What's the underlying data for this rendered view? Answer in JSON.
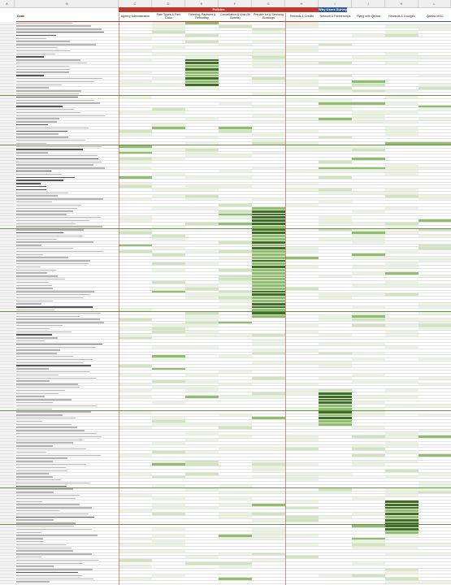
{
  "sheet": {
    "header_cell": "Code",
    "col_letters": [
      "A",
      "B",
      "C",
      "D",
      "E",
      "F",
      "G",
      "H",
      "I",
      "J",
      "K",
      "L",
      "M"
    ],
    "groups": [
      {
        "label": "Policies",
        "color": "#c0392b",
        "from": 2,
        "to": 7
      },
      {
        "label": "Why Users Survey",
        "color": "#2e5c9a",
        "from": 8,
        "to": 12
      }
    ],
    "columns": [
      "Agency Administration",
      "Fare Types & Fare Calcs",
      "Ticketing, Payment & Refunding",
      "Cancellation & Void (BI Boards)",
      "Prepare for & Servicing Bookings",
      "Refunds & Credits",
      "Network & Partnerships",
      "Flying with Qantas",
      "Rewards & Lounges",
      "Qantas MSC"
    ],
    "colors": {
      "dark": "#3f6f22",
      "mid": "#8fbf6a",
      "light": "#cfe6bd",
      "pale": "#eaf4e1"
    }
  }
}
